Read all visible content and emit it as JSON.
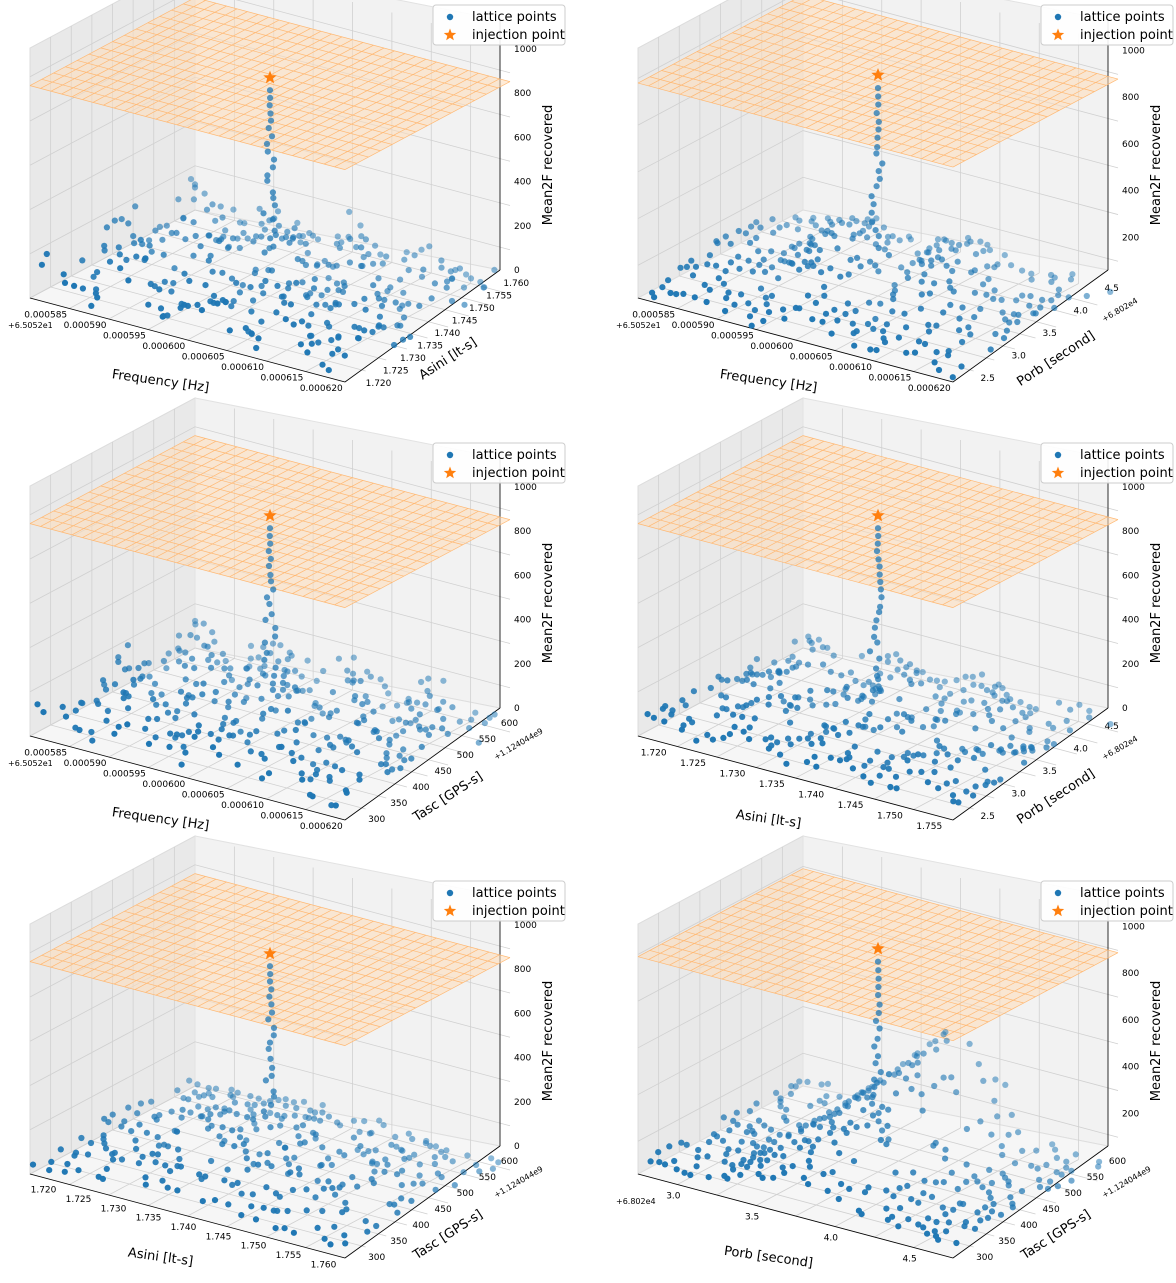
{
  "figure": {
    "legend": {
      "lattice_label": "lattice points",
      "injection_label": "injection point"
    },
    "colors": {
      "lattice": "#1f77b4",
      "injection": "#ff7f0e",
      "plane": "#ffa64d"
    }
  },
  "chart_data": [
    {
      "type": "scatter",
      "zlabel": "Mean2F recovered",
      "zticks": [
        "0",
        "200",
        "400",
        "600",
        "800",
        "1000"
      ],
      "xlabel": "Frequency [Hz]",
      "xoffset": "+6.5052e1",
      "xticks": [
        "0.000585",
        "0.000590",
        "0.000595",
        "0.000600",
        "0.000605",
        "0.000610",
        "0.000615",
        "0.000620"
      ],
      "ylabel": "Asini [lt-s]",
      "yoffset": "",
      "yticks": [
        "1.720",
        "1.725",
        "1.730",
        "1.735",
        "1.740",
        "1.745",
        "1.750",
        "1.755",
        "1.760"
      ],
      "zlim": [
        0,
        1130
      ],
      "injection": {
        "x": 0.5,
        "y": 0.5,
        "z": 960
      },
      "pattern": "noisy"
    },
    {
      "type": "scatter",
      "zlabel": "Mean2F recovered",
      "zticks": [
        "200",
        "400",
        "600",
        "800",
        "1000"
      ],
      "xlabel": "Frequency [Hz]",
      "xoffset": "+6.5052e1",
      "xticks": [
        "0.000585",
        "0.000590",
        "0.000595",
        "0.000600",
        "0.000605",
        "0.000610",
        "0.000615",
        "0.000620"
      ],
      "ylabel": "Porb [second]",
      "yoffset": "+6.802e4",
      "yticks": [
        "2.5",
        "3.0",
        "3.5",
        "4.0",
        "4.5"
      ],
      "zlim": [
        60,
        1130
      ],
      "injection": {
        "x": 0.5,
        "y": 0.5,
        "z": 980
      },
      "pattern": "ridges"
    },
    {
      "type": "scatter",
      "zlabel": "Mean2F recovered",
      "zticks": [
        "0",
        "200",
        "400",
        "600",
        "800",
        "1000"
      ],
      "xlabel": "Frequency [Hz]",
      "xoffset": "+6.5052e1",
      "xticks": [
        "0.000585",
        "0.000590",
        "0.000595",
        "0.000600",
        "0.000605",
        "0.000610",
        "0.000615",
        "0.000620"
      ],
      "ylabel": "Tasc [GPS-s]",
      "yoffset": "+1.124044e9",
      "yticks": [
        "300",
        "350",
        "400",
        "450",
        "500",
        "550",
        "600"
      ],
      "zlim": [
        0,
        1130
      ],
      "injection": {
        "x": 0.5,
        "y": 0.5,
        "z": 960
      },
      "pattern": "noisy"
    },
    {
      "type": "scatter",
      "zlabel": "Mean2F recovered",
      "zticks": [
        "0",
        "200",
        "400",
        "600",
        "800",
        "1000"
      ],
      "xlabel": "Asini [lt-s]",
      "xoffset": "",
      "xticks": [
        "1.720",
        "1.725",
        "1.730",
        "1.735",
        "1.740",
        "1.745",
        "1.750",
        "1.755"
      ],
      "ylabel": "Porb [second]",
      "yoffset": "+6.802e4",
      "yticks": [
        "2.5",
        "3.0",
        "3.5",
        "4.0",
        "4.5"
      ],
      "zlim": [
        0,
        1130
      ],
      "injection": {
        "x": 0.5,
        "y": 0.5,
        "z": 960
      },
      "pattern": "waves"
    },
    {
      "type": "scatter",
      "zlabel": "Mean2F recovered",
      "zticks": [
        "0",
        "200",
        "400",
        "600",
        "800",
        "1000"
      ],
      "xlabel": "Asini [lt-s]",
      "xoffset": "",
      "xticks": [
        "1.720",
        "1.725",
        "1.730",
        "1.735",
        "1.740",
        "1.745",
        "1.750",
        "1.755",
        "1.760"
      ],
      "ylabel": "Tasc [GPS-s]",
      "yoffset": "+1.124044e9",
      "yticks": [
        "300",
        "350",
        "400",
        "450",
        "500",
        "550",
        "600"
      ],
      "zlim": [
        0,
        1130
      ],
      "injection": {
        "x": 0.5,
        "y": 0.5,
        "z": 960
      },
      "pattern": "rings"
    },
    {
      "type": "scatter",
      "zlabel": "Mean2F recovered",
      "zticks": [
        "200",
        "400",
        "600",
        "800",
        "1000"
      ],
      "xlabel": "Porb [second]",
      "xoffset": "+6.802e4",
      "xticks": [
        "3.0",
        "3.5",
        "4.0",
        "4.5"
      ],
      "ylabel": "Tasc [GPS-s]",
      "yoffset": "+1.124044e9",
      "yticks": [
        "300",
        "350",
        "400",
        "450",
        "500",
        "550",
        "600"
      ],
      "zlim": [
        60,
        1130
      ],
      "injection": {
        "x": 0.5,
        "y": 0.5,
        "z": 990
      },
      "pattern": "ridge"
    }
  ]
}
